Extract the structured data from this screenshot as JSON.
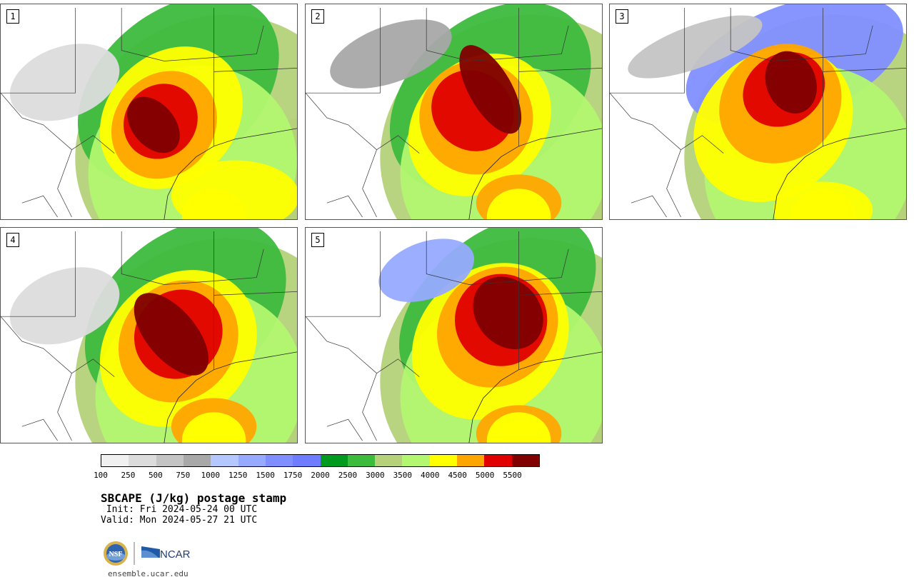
{
  "panels": [
    {
      "label": "1"
    },
    {
      "label": "2"
    },
    {
      "label": "3"
    },
    {
      "label": "4"
    },
    {
      "label": "5"
    }
  ],
  "colorbar": {
    "colors": [
      "#f0f0f0",
      "#dcdcdc",
      "#c4c4c4",
      "#a8a8a8",
      "#b4c8ff",
      "#96aaff",
      "#7f8fff",
      "#6e7cff",
      "#009a1e",
      "#3dbb3d",
      "#b5d27a",
      "#b2f76f",
      "#ffff00",
      "#ffa500",
      "#e00000",
      "#800000"
    ],
    "ticks": [
      "100",
      "250",
      "500",
      "750",
      "1000",
      "1250",
      "1500",
      "1750",
      "2000",
      "2500",
      "3000",
      "3500",
      "4000",
      "4500",
      "5000",
      "5500"
    ]
  },
  "title": "SBCAPE (J/kg) postage stamp",
  "init": " Init: Fri 2024-05-24 00 UTC",
  "valid": "Valid: Mon 2024-05-27 21 UTC",
  "footer": {
    "nsf_logo": "NSF",
    "ncar_logo": "NCAR",
    "url": "ensemble.ucar.edu"
  }
}
